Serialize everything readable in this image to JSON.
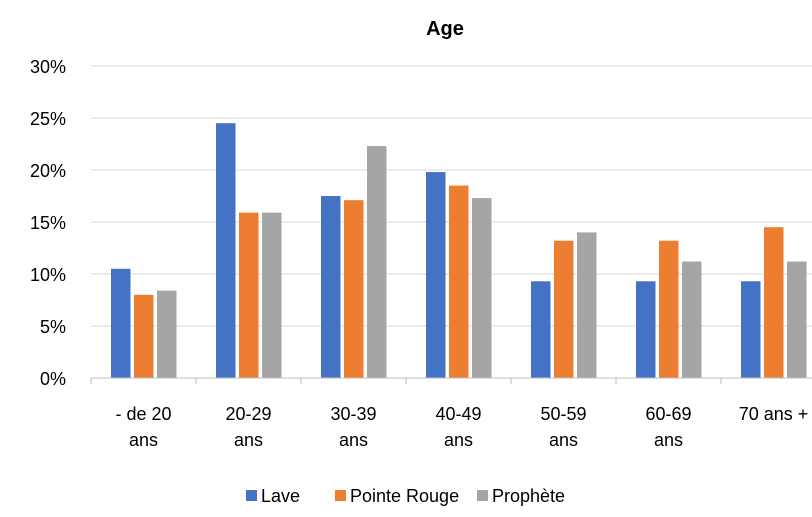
{
  "chart_data": {
    "type": "bar",
    "title": "Age",
    "categories": [
      [
        "- de 20",
        "ans"
      ],
      [
        "20-29",
        "ans"
      ],
      [
        "30-39",
        "ans"
      ],
      [
        "40-49",
        "ans"
      ],
      [
        "50-59",
        "ans"
      ],
      [
        "60-69",
        "ans"
      ],
      [
        "70 ans +"
      ]
    ],
    "series": [
      {
        "name": "Lave",
        "color": "#4472C4",
        "values": [
          10.5,
          24.5,
          17.5,
          19.8,
          9.3,
          9.3,
          9.3
        ]
      },
      {
        "name": "Pointe Rouge",
        "color": "#ED7D31",
        "values": [
          8.0,
          15.9,
          17.1,
          18.5,
          13.2,
          13.2,
          14.5
        ]
      },
      {
        "name": "Prophète",
        "color": "#A5A5A5",
        "values": [
          8.4,
          15.9,
          22.3,
          17.3,
          14.0,
          11.2,
          11.2
        ]
      }
    ],
    "ylim": [
      0,
      30
    ],
    "yticks": [
      "0%",
      "5%",
      "10%",
      "15%",
      "20%",
      "25%",
      "30%"
    ],
    "grid": true,
    "legend": "bottom",
    "xlabel": "",
    "ylabel": ""
  }
}
